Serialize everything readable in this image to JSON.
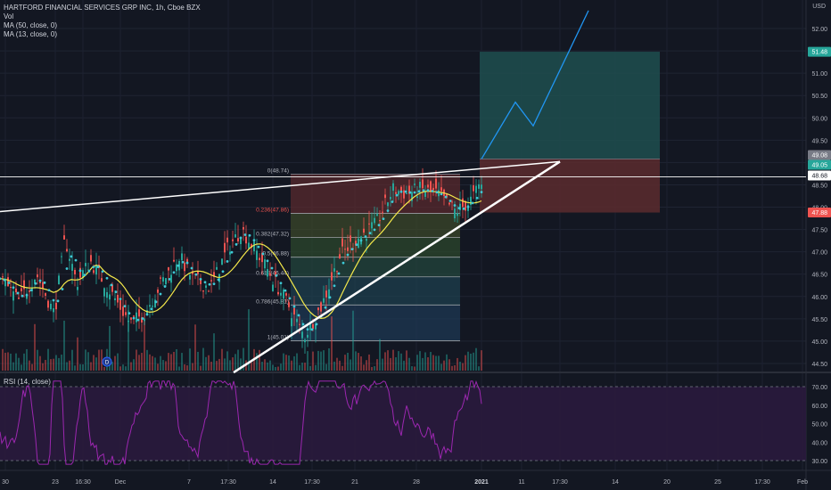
{
  "legend": {
    "title": "HARTFORD FINANCIAL SERVICES GRP INC, 1h, Cboe BZX",
    "vol": "Vol",
    "ma50": "MA (50, close, 0)",
    "ma13": "MA (13, close, 0)"
  },
  "rsi_legend": "RSI (14, close)",
  "currency": "USD",
  "colors": {
    "background": "#131722",
    "candle_up": "#26a69a",
    "candle_down": "#ef5350",
    "ma50": "#f5e94b",
    "ma13": "#3ec9d6",
    "rsi": "#9c27b0",
    "projection": "#2196f3",
    "target_zone": "#1e4f4f",
    "stop_zone": "#5c2b2e",
    "trendline": "#ffffff"
  },
  "chart_data": {
    "type": "candlestick",
    "symbol": "HARTFORD FINANCIAL SERVICES GRP INC",
    "interval": "1h",
    "price_axis": {
      "ticks": [
        44.5,
        45.0,
        45.5,
        46.0,
        46.5,
        47.0,
        47.5,
        48.0,
        48.5,
        49.0,
        49.5,
        50.0,
        50.5,
        51.0,
        51.5,
        52.0
      ],
      "tick_labels": [
        "44.50",
        "45.00",
        "45.50",
        "46.00",
        "46.50",
        "47.00",
        "47.50",
        "48.00",
        "48.50",
        "49.00",
        "49.50",
        "50.00",
        "50.50",
        "51.00",
        "51.50",
        "52.00"
      ],
      "ylim": [
        44.25,
        52.4
      ],
      "badges": [
        {
          "label": "51.48",
          "value": 51.48,
          "color": "#26a69a"
        },
        {
          "label": "49.08",
          "value": 49.08,
          "color": "#787b86"
        },
        {
          "label": "49.05",
          "value": 49.05,
          "color": "#26a69a"
        },
        {
          "label": "48.68",
          "value": 48.68,
          "color": "#ffffff"
        },
        {
          "label": "47.88",
          "value": 47.88,
          "color": "#ef5350"
        }
      ]
    },
    "time_axis": [
      "30",
      "23",
      "16:30",
      "Dec",
      "7",
      "17:30",
      "14",
      "17:30",
      "21",
      "28",
      "2021",
      "11",
      "17:30",
      "14",
      "20",
      "25",
      "17:30",
      "Feb"
    ],
    "fibonacci": [
      {
        "label": "0(48.74)",
        "value": 48.74
      },
      {
        "label": "0.236(47.86)",
        "value": 47.86
      },
      {
        "label": "0.382(47.32)",
        "value": 47.32
      },
      {
        "label": "0.5(46.88)",
        "value": 46.88
      },
      {
        "label": "0.618(46.44)",
        "value": 46.44
      },
      {
        "label": "0.786(45.81)",
        "value": 45.81
      },
      {
        "label": "1(45.01)",
        "value": 45.01
      }
    ],
    "position": {
      "entry": 49.08,
      "target": 51.48,
      "stop": 47.88
    },
    "projection_path": [
      49.08,
      50.35,
      49.82,
      52.4
    ],
    "rsi": {
      "ticks": [
        30,
        40,
        50,
        60,
        70
      ],
      "tick_labels": [
        "30.00",
        "40.00",
        "50.00",
        "60.00",
        "70.00"
      ],
      "bands": [
        30,
        70
      ],
      "ylim": [
        26,
        74
      ]
    }
  }
}
